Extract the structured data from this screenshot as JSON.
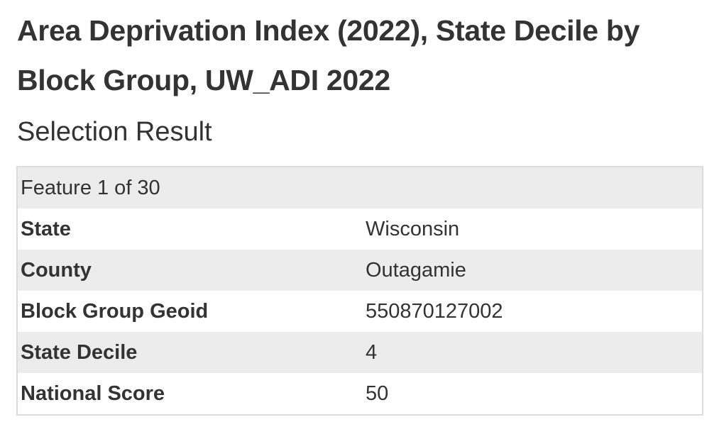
{
  "title": "Area Deprivation Index (2022), State Decile by Block Group, UW_ADI 2022",
  "subtitle": "Selection Result",
  "feature_header": "Feature 1 of 30",
  "rows": [
    {
      "name": "State",
      "value": "Wisconsin"
    },
    {
      "name": "County",
      "value": "Outagamie"
    },
    {
      "name": "Block Group Geoid",
      "value": "550870127002"
    },
    {
      "name": "State Decile",
      "value": "4"
    },
    {
      "name": "National Score",
      "value": "50"
    }
  ]
}
